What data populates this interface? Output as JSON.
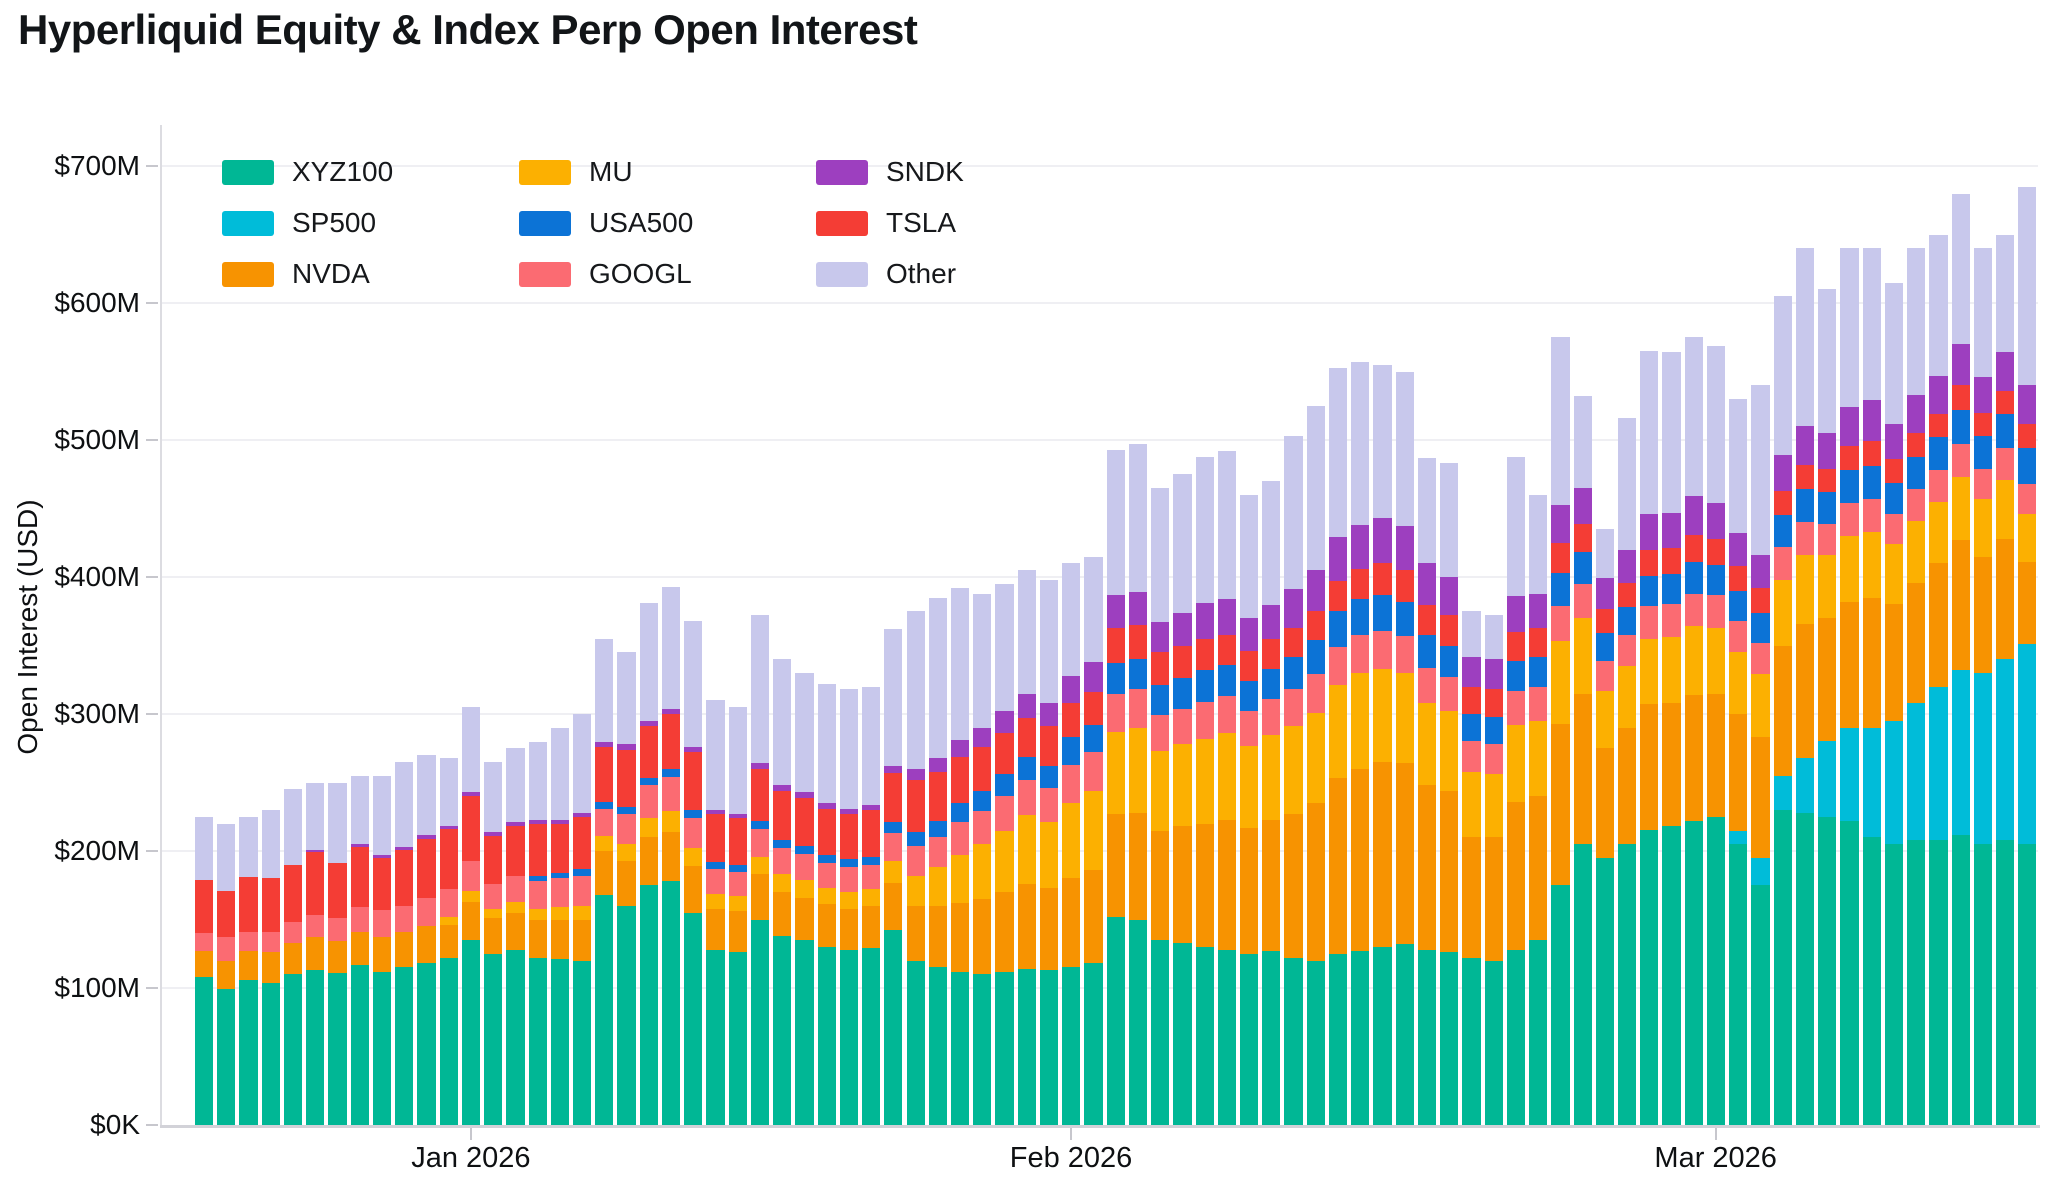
{
  "title": "Hyperliquid Equity & Index Perp Open Interest",
  "chart_data": {
    "type": "bar",
    "stacked": true,
    "title": "Hyperliquid Equity & Index Perp Open Interest",
    "xlabel": "",
    "ylabel": "Open Interest (USD)",
    "unit": "USD millions",
    "ylim": [
      0,
      730
    ],
    "grid": "horizontal",
    "legend_position": "top-left-inside",
    "yticks": [
      {
        "value": 0,
        "label": "$0K"
      },
      {
        "value": 100,
        "label": "$100M"
      },
      {
        "value": 200,
        "label": "$200M"
      },
      {
        "value": 300,
        "label": "$300M"
      },
      {
        "value": 400,
        "label": "$400M"
      },
      {
        "value": 500,
        "label": "$500M"
      },
      {
        "value": 600,
        "label": "$600M"
      },
      {
        "value": 700,
        "label": "$700M"
      }
    ],
    "xticks": [
      {
        "index": 12,
        "label": "Jan 2026"
      },
      {
        "index": 39,
        "label": "Feb 2026"
      },
      {
        "index": 68,
        "label": "Mar 2026"
      }
    ],
    "legend_columns": [
      [
        "XYZ100",
        "SP500",
        "NVDA"
      ],
      [
        "MU",
        "USA500",
        "GOOGL"
      ],
      [
        "SNDK",
        "TSLA",
        "Other"
      ]
    ],
    "series": [
      {
        "name": "XYZ100",
        "color": "#00b795",
        "values": [
          108,
          99,
          106,
          104,
          110,
          113,
          111,
          117,
          112,
          115,
          118,
          122,
          135,
          125,
          128,
          122,
          121,
          120,
          168,
          160,
          175,
          178,
          155,
          128,
          126,
          150,
          138,
          135,
          130,
          128,
          129,
          142,
          120,
          115,
          112,
          110,
          112,
          114,
          113,
          115,
          118,
          152,
          150,
          135,
          133,
          130,
          128,
          125,
          127,
          122,
          120,
          125,
          127,
          130,
          132,
          128,
          126,
          122,
          120,
          128,
          135,
          175,
          205,
          195,
          205,
          215,
          218,
          222,
          225,
          205,
          175,
          230,
          228,
          225,
          222,
          210,
          205,
          208,
          208,
          212,
          205,
          208,
          205
        ]
      },
      {
        "name": "SP500",
        "color": "#00bcd9",
        "values": [
          0,
          0,
          0,
          0,
          0,
          0,
          0,
          0,
          0,
          0,
          0,
          0,
          0,
          0,
          0,
          0,
          0,
          0,
          0,
          0,
          0,
          0,
          0,
          0,
          0,
          0,
          0,
          0,
          0,
          0,
          0,
          0,
          0,
          0,
          0,
          0,
          0,
          0,
          0,
          0,
          0,
          0,
          0,
          0,
          0,
          0,
          0,
          0,
          0,
          0,
          0,
          0,
          0,
          0,
          0,
          0,
          0,
          0,
          0,
          0,
          0,
          0,
          0,
          0,
          0,
          0,
          0,
          0,
          0,
          10,
          20,
          25,
          40,
          55,
          68,
          80,
          90,
          100,
          112,
          120,
          125,
          132,
          146
        ]
      },
      {
        "name": "NVDA",
        "color": "#f79301",
        "values": [
          19,
          21,
          21,
          22,
          23,
          24,
          23,
          24,
          25,
          26,
          27,
          24,
          28,
          26,
          27,
          28,
          29,
          30,
          32,
          33,
          35,
          36,
          34,
          30,
          30,
          33,
          32,
          31,
          31,
          30,
          31,
          35,
          40,
          45,
          50,
          55,
          58,
          62,
          60,
          65,
          68,
          75,
          78,
          80,
          85,
          90,
          95,
          92,
          96,
          105,
          115,
          128,
          133,
          135,
          132,
          120,
          118,
          88,
          90,
          108,
          105,
          118,
          110,
          80,
          85,
          92,
          90,
          92,
          90,
          85,
          88,
          95,
          98,
          90,
          92,
          95,
          85,
          88,
          90,
          95,
          85,
          88,
          60
        ]
      },
      {
        "name": "MU",
        "color": "#fcb001",
        "values": [
          0,
          0,
          0,
          0,
          0,
          0,
          0,
          0,
          0,
          0,
          0,
          6,
          8,
          7,
          8,
          8,
          9,
          10,
          11,
          12,
          14,
          15,
          13,
          11,
          11,
          13,
          13,
          13,
          12,
          12,
          12,
          16,
          22,
          28,
          35,
          40,
          45,
          50,
          48,
          55,
          58,
          60,
          62,
          58,
          60,
          62,
          63,
          60,
          62,
          64,
          66,
          68,
          70,
          68,
          66,
          60,
          58,
          48,
          46,
          56,
          55,
          60,
          55,
          42,
          45,
          48,
          48,
          50,
          48,
          45,
          46,
          48,
          50,
          46,
          48,
          48,
          44,
          45,
          45,
          46,
          42,
          43,
          35
        ]
      },
      {
        "name": "GOOGL",
        "color": "#fb6b72",
        "values": [
          13,
          17,
          14,
          15,
          15,
          16,
          17,
          18,
          20,
          19,
          21,
          20,
          22,
          18,
          19,
          20,
          21,
          22,
          20,
          22,
          24,
          25,
          22,
          18,
          18,
          20,
          19,
          19,
          18,
          18,
          18,
          20,
          22,
          22,
          24,
          24,
          25,
          26,
          25,
          28,
          28,
          28,
          28,
          26,
          26,
          27,
          27,
          25,
          26,
          27,
          28,
          28,
          28,
          28,
          27,
          26,
          25,
          22,
          22,
          25,
          25,
          26,
          25,
          22,
          23,
          24,
          24,
          24,
          24,
          23,
          23,
          24,
          24,
          23,
          24,
          24,
          22,
          23,
          23,
          24,
          22,
          23,
          22
        ]
      },
      {
        "name": "USA500",
        "color": "#0c73d6",
        "values": [
          0,
          0,
          0,
          0,
          0,
          0,
          0,
          0,
          0,
          0,
          0,
          0,
          0,
          0,
          0,
          4,
          4,
          5,
          5,
          5,
          5,
          6,
          6,
          5,
          5,
          6,
          6,
          6,
          6,
          6,
          6,
          8,
          10,
          12,
          14,
          15,
          16,
          17,
          16,
          20,
          20,
          22,
          22,
          22,
          22,
          23,
          23,
          22,
          22,
          24,
          25,
          26,
          26,
          26,
          25,
          24,
          23,
          20,
          20,
          22,
          22,
          24,
          23,
          20,
          20,
          22,
          22,
          23,
          22,
          22,
          22,
          23,
          24,
          23,
          24,
          24,
          23,
          24,
          24,
          25,
          24,
          25,
          26
        ]
      },
      {
        "name": "TSLA",
        "color": "#f43d35",
        "values": [
          39,
          34,
          40,
          39,
          42,
          46,
          40,
          44,
          38,
          41,
          43,
          44,
          47,
          35,
          36,
          38,
          36,
          38,
          40,
          42,
          38,
          40,
          42,
          35,
          34,
          38,
          36,
          35,
          34,
          33,
          34,
          36,
          38,
          36,
          34,
          32,
          30,
          28,
          29,
          25,
          24,
          26,
          25,
          24,
          24,
          23,
          22,
          22,
          22,
          21,
          21,
          22,
          22,
          23,
          23,
          22,
          22,
          20,
          20,
          21,
          21,
          22,
          21,
          18,
          18,
          19,
          19,
          20,
          19,
          18,
          18,
          18,
          18,
          17,
          18,
          18,
          17,
          17,
          17,
          18,
          17,
          17,
          18
        ]
      },
      {
        "name": "SNDK",
        "color": "#9d3fbf",
        "values": [
          0,
          0,
          0,
          0,
          0,
          2,
          0,
          2,
          2,
          2,
          3,
          2,
          3,
          3,
          3,
          3,
          3,
          3,
          4,
          4,
          4,
          4,
          4,
          3,
          3,
          4,
          4,
          4,
          4,
          4,
          4,
          5,
          8,
          10,
          12,
          14,
          16,
          18,
          17,
          20,
          22,
          24,
          24,
          22,
          24,
          26,
          26,
          24,
          25,
          28,
          30,
          32,
          32,
          33,
          32,
          30,
          28,
          22,
          22,
          26,
          25,
          28,
          26,
          22,
          24,
          26,
          26,
          28,
          26,
          24,
          24,
          26,
          28,
          26,
          28,
          30,
          26,
          28,
          28,
          30,
          26,
          28,
          28
        ]
      },
      {
        "name": "Other",
        "color": "#c8c8ec",
        "values": [
          46,
          49,
          44,
          50,
          55,
          49,
          59,
          50,
          58,
          62,
          58,
          50,
          62,
          51,
          54,
          57,
          67,
          72,
          75,
          67,
          86,
          89,
          92,
          80,
          78,
          108,
          92,
          87,
          87,
          87,
          86,
          100,
          115,
          117,
          111,
          98,
          93,
          90,
          90,
          82,
          77,
          106,
          108,
          98,
          101,
          107,
          108,
          90,
          90,
          112,
          120,
          124,
          119,
          112,
          113,
          77,
          83,
          33,
          32,
          102,
          72,
          122,
          67,
          36,
          96,
          119,
          117,
          116,
          115,
          98,
          124,
          116,
          130,
          105,
          116,
          111,
          103,
          107,
          103,
          110,
          94,
          86,
          145
        ]
      }
    ]
  }
}
